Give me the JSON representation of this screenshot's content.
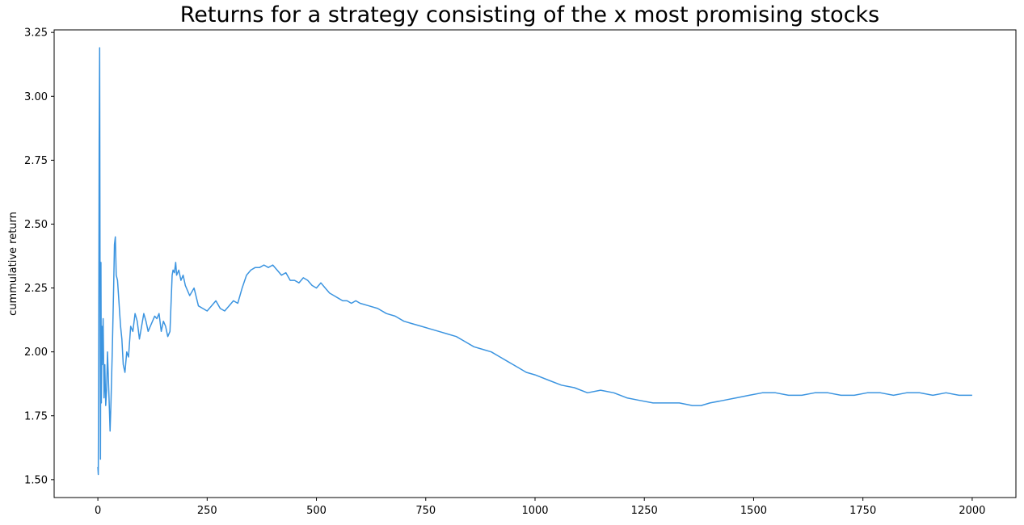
{
  "chart_data": {
    "type": "line",
    "title": "Returns for a strategy consisting of the x most promising stocks",
    "xlabel": "",
    "ylabel": "cummulative return",
    "xlim": [
      -100,
      2100
    ],
    "ylim": [
      1.43,
      3.26
    ],
    "x_ticks": [
      0,
      250,
      500,
      750,
      1000,
      1250,
      1500,
      1750,
      2000
    ],
    "y_ticks": [
      1.5,
      1.75,
      2.0,
      2.25,
      2.5,
      2.75,
      3.0,
      3.25
    ],
    "y_tick_labels": [
      "1.50",
      "1.75",
      "2.00",
      "2.25",
      "2.50",
      "2.75",
      "3.00",
      "3.25"
    ],
    "x_tick_labels": [
      "0",
      "250",
      "500",
      "750",
      "1000",
      "1250",
      "1500",
      "1750",
      "2000"
    ],
    "grid": false,
    "line_color": "#3b94e0",
    "series": [
      {
        "x": [
          0,
          1,
          2,
          3,
          4,
          5,
          6,
          7,
          8,
          9,
          10,
          12,
          14,
          16,
          18,
          20,
          22,
          25,
          28,
          30,
          33,
          36,
          38,
          40,
          42,
          45,
          48,
          50,
          52,
          55,
          58,
          62,
          66,
          70,
          75,
          80,
          85,
          90,
          95,
          100,
          105,
          110,
          115,
          120,
          125,
          130,
          135,
          140,
          145,
          150,
          155,
          160,
          165,
          170,
          172,
          175,
          178,
          180,
          185,
          190,
          195,
          200,
          210,
          220,
          230,
          240,
          250,
          260,
          270,
          280,
          290,
          300,
          310,
          320,
          330,
          340,
          350,
          360,
          370,
          380,
          390,
          400,
          410,
          420,
          430,
          440,
          450,
          460,
          470,
          480,
          490,
          500,
          510,
          520,
          530,
          540,
          550,
          560,
          570,
          580,
          590,
          600,
          620,
          640,
          660,
          680,
          700,
          720,
          740,
          760,
          780,
          800,
          820,
          840,
          860,
          880,
          900,
          920,
          940,
          960,
          980,
          1000,
          1030,
          1060,
          1090,
          1120,
          1150,
          1180,
          1210,
          1240,
          1270,
          1300,
          1330,
          1360,
          1380,
          1400,
          1430,
          1460,
          1490,
          1520,
          1550,
          1580,
          1610,
          1640,
          1670,
          1700,
          1730,
          1760,
          1790,
          1820,
          1850,
          1880,
          1910,
          1940,
          1970,
          2000
        ],
        "values": [
          1.55,
          1.52,
          2.1,
          2.82,
          3.19,
          2.3,
          1.58,
          2.35,
          1.8,
          2.1,
          1.95,
          2.13,
          1.82,
          1.95,
          1.79,
          1.85,
          2.0,
          1.85,
          1.69,
          1.8,
          2.0,
          2.25,
          2.42,
          2.45,
          2.3,
          2.28,
          2.2,
          2.15,
          2.1,
          2.05,
          1.95,
          1.92,
          2.0,
          1.98,
          2.1,
          2.08,
          2.15,
          2.12,
          2.05,
          2.1,
          2.15,
          2.12,
          2.08,
          2.1,
          2.12,
          2.14,
          2.13,
          2.15,
          2.08,
          2.12,
          2.1,
          2.06,
          2.08,
          2.3,
          2.32,
          2.31,
          2.35,
          2.3,
          2.32,
          2.28,
          2.3,
          2.26,
          2.22,
          2.25,
          2.18,
          2.17,
          2.16,
          2.18,
          2.2,
          2.17,
          2.16,
          2.18,
          2.2,
          2.19,
          2.25,
          2.3,
          2.32,
          2.33,
          2.33,
          2.34,
          2.33,
          2.34,
          2.32,
          2.3,
          2.31,
          2.28,
          2.28,
          2.27,
          2.29,
          2.28,
          2.26,
          2.25,
          2.27,
          2.25,
          2.23,
          2.22,
          2.21,
          2.2,
          2.2,
          2.19,
          2.2,
          2.19,
          2.18,
          2.17,
          2.15,
          2.14,
          2.12,
          2.11,
          2.1,
          2.09,
          2.08,
          2.07,
          2.06,
          2.04,
          2.02,
          2.01,
          2.0,
          1.98,
          1.96,
          1.94,
          1.92,
          1.91,
          1.89,
          1.87,
          1.86,
          1.84,
          1.85,
          1.84,
          1.82,
          1.81,
          1.8,
          1.8,
          1.8,
          1.79,
          1.79,
          1.8,
          1.81,
          1.82,
          1.83,
          1.84,
          1.84,
          1.83,
          1.83,
          1.84,
          1.84,
          1.83,
          1.83,
          1.84,
          1.84,
          1.83,
          1.84,
          1.84,
          1.83,
          1.84,
          1.83,
          1.83
        ]
      }
    ]
  }
}
